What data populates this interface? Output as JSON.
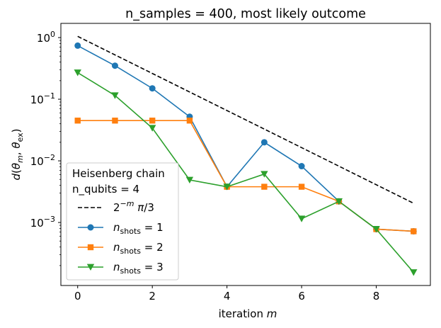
{
  "chart_data": {
    "type": "line",
    "title": "n_samples = 400, most likely outcome",
    "xlabel": "iteration m",
    "ylabel": "d(θm, θex)",
    "xlim": [
      -0.45,
      9.45
    ],
    "ylim": [
      9.5e-05,
      1.7
    ],
    "yscale": "log",
    "grid": false,
    "legend_position": "lower left",
    "legend_title": [
      "Heisenberg chain",
      "n_qubits = 4"
    ],
    "x_ticks": [
      {
        "value": 0,
        "label": "0"
      },
      {
        "value": 2,
        "label": "2"
      },
      {
        "value": 4,
        "label": "4"
      },
      {
        "value": 6,
        "label": "6"
      },
      {
        "value": 8,
        "label": "8"
      }
    ],
    "y_ticks": [
      {
        "value": 1,
        "label_base": "10",
        "label_exp": "0"
      },
      {
        "value": 0.1,
        "label_base": "10",
        "label_exp": "−1"
      },
      {
        "value": 0.01,
        "label_base": "10",
        "label_exp": "−2"
      },
      {
        "value": 0.001,
        "label_base": "10",
        "label_exp": "−3"
      }
    ],
    "x": [
      0,
      1,
      2,
      3,
      4,
      5,
      6,
      7,
      8,
      9
    ],
    "series": [
      {
        "name": "2^−m π/3",
        "color": "#000000",
        "dashed": true,
        "marker": "none",
        "x": [
          0,
          9
        ],
        "values": [
          1.047,
          0.00205
        ]
      },
      {
        "name": "n_shots = 1",
        "color": "#1f77b4",
        "marker": "circle",
        "values": [
          0.74,
          0.35,
          0.15,
          0.052,
          0.0038,
          0.02,
          0.0082,
          0.0022,
          0.00078,
          0.00072
        ]
      },
      {
        "name": "n_shots = 2",
        "color": "#ff7f0e",
        "marker": "square",
        "values": [
          0.045,
          0.045,
          0.045,
          0.045,
          0.0038,
          0.0038,
          0.0038,
          0.0022,
          0.00078,
          0.00072
        ]
      },
      {
        "name": "n_shots = 3",
        "color": "#2ca02c",
        "marker": "triangle-down",
        "values": [
          0.27,
          0.115,
          0.034,
          0.0049,
          0.0038,
          0.0061,
          0.00115,
          0.0022,
          0.00078,
          0.000155
        ]
      }
    ]
  }
}
